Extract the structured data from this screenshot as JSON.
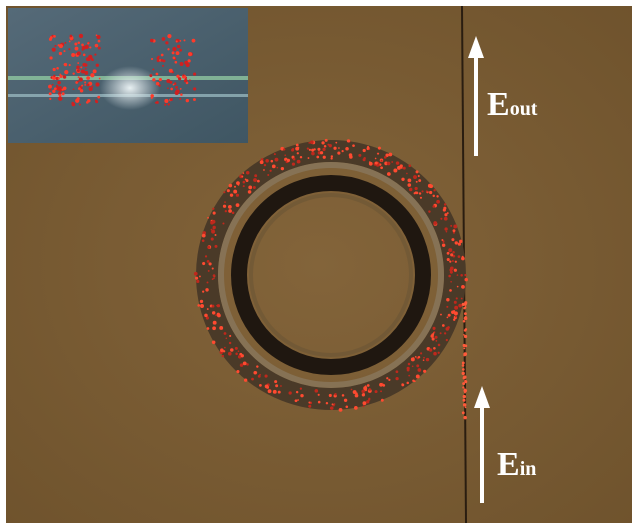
{
  "labels": {
    "output": {
      "main": "E",
      "sub": "out"
    },
    "input": {
      "main": "E",
      "sub": "in"
    }
  }
}
